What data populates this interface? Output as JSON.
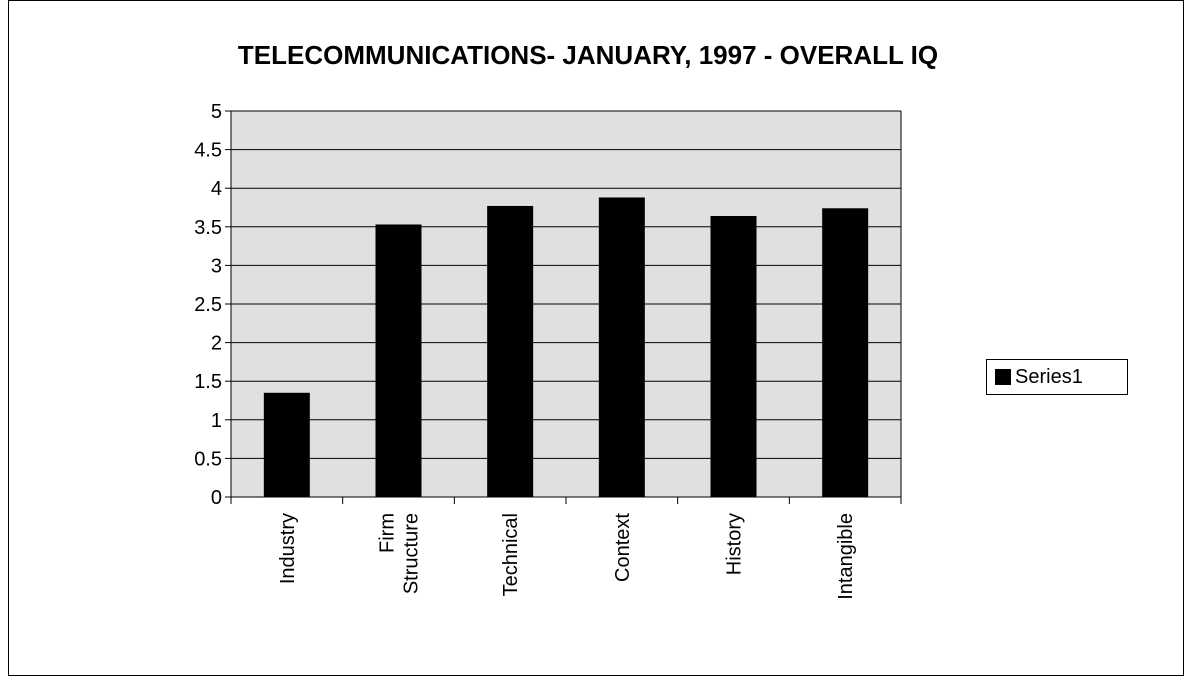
{
  "chart_data": {
    "type": "bar",
    "title": "TELECOMMUNICATIONS- JANUARY, 1997 - OVERALL IQ",
    "xlabel": "",
    "ylabel": "",
    "categories": [
      "Industry",
      "Firm Structure",
      "Technical",
      "Context",
      "History",
      "Intangible"
    ],
    "category_lines": [
      [
        "Industry"
      ],
      [
        "Firm",
        "Structure"
      ],
      [
        "Technical"
      ],
      [
        "Context"
      ],
      [
        "History"
      ],
      [
        "Intangible"
      ]
    ],
    "series": [
      {
        "name": "Series1",
        "values": [
          1.35,
          3.53,
          3.77,
          3.88,
          3.64,
          3.74
        ]
      }
    ],
    "ylim": [
      0,
      5
    ],
    "yticks": [
      "0",
      "0.5",
      "1",
      "1.5",
      "2",
      "2.5",
      "3",
      "3.5",
      "4",
      "4.5",
      "5"
    ],
    "grid": true,
    "legend_position": "right",
    "colors": {
      "plot_background": "#e0e0e0",
      "bar": "#000000",
      "grid": "#000000"
    }
  }
}
